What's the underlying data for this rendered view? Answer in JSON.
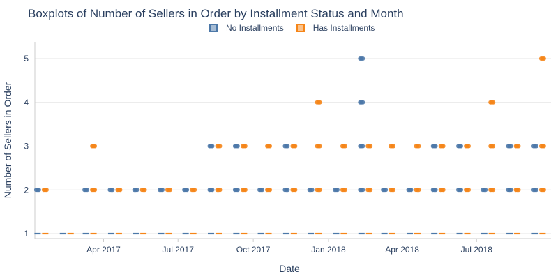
{
  "chart_data": {
    "type": "boxplot",
    "title": "Boxplots of Number of Sellers in Order by Installment Status and Month",
    "xlabel": "Date",
    "ylabel": "Number of Sellers in Order",
    "ylim": [
      0.75,
      5.25
    ],
    "yticks": [
      1,
      2,
      3,
      4,
      5
    ],
    "xticks": [
      "2017-04-01",
      "2017-07-01",
      "2017-10-01",
      "2018-01-01",
      "2018-04-01",
      "2018-07-01"
    ],
    "xtick_labels": [
      "Apr 2017",
      "Jul 2017",
      "Oct 2017",
      "Jan 2018",
      "Apr 2018",
      "Jul 2018"
    ],
    "xlim": [
      "2017-01-07",
      "2018-09-30"
    ],
    "grid": "horizontal",
    "legend_position": "top-center",
    "colors": {
      "No Installments": "#4c78a8",
      "Has Installments": "#f58518"
    },
    "months": [
      "2017-01",
      "2017-02",
      "2017-03",
      "2017-04",
      "2017-05",
      "2017-06",
      "2017-07",
      "2017-08",
      "2017-09",
      "2017-10",
      "2017-11",
      "2017-12",
      "2018-01",
      "2018-02",
      "2018-03",
      "2018-04",
      "2018-05",
      "2018-06",
      "2018-07",
      "2018-08",
      "2018-09"
    ],
    "series": [
      {
        "name": "No Installments",
        "median": [
          1,
          1,
          1,
          1,
          1,
          1,
          1,
          1,
          1,
          1,
          1,
          1,
          1,
          1,
          1,
          1,
          1,
          1,
          1,
          1,
          1
        ],
        "outliers": [
          [
            2
          ],
          [],
          [
            2
          ],
          [
            2
          ],
          [
            2
          ],
          [
            2
          ],
          [
            2
          ],
          [
            2,
            3
          ],
          [
            2,
            3
          ],
          [
            2
          ],
          [
            2,
            3
          ],
          [
            2
          ],
          [
            2
          ],
          [
            2,
            3,
            4,
            5
          ],
          [
            2
          ],
          [
            2
          ],
          [
            2,
            3
          ],
          [
            2,
            3
          ],
          [
            2
          ],
          [
            2,
            3
          ],
          [
            2,
            3
          ]
        ]
      },
      {
        "name": "Has Installments",
        "median": [
          1,
          1,
          1,
          1,
          1,
          1,
          1,
          1,
          1,
          1,
          1,
          1,
          1,
          1,
          1,
          1,
          1,
          1,
          1,
          1,
          1
        ],
        "outliers": [
          [
            2
          ],
          [],
          [
            2,
            3
          ],
          [
            2
          ],
          [
            2
          ],
          [
            2
          ],
          [
            2
          ],
          [
            2,
            3
          ],
          [
            2,
            3
          ],
          [
            2,
            3
          ],
          [
            2,
            3
          ],
          [
            2,
            3,
            4
          ],
          [
            2,
            3
          ],
          [
            2,
            3
          ],
          [
            2,
            3
          ],
          [
            2,
            3
          ],
          [
            2,
            3
          ],
          [
            2,
            3
          ],
          [
            2,
            3,
            4
          ],
          [
            2,
            3
          ],
          [
            2,
            3,
            5
          ]
        ]
      }
    ]
  }
}
